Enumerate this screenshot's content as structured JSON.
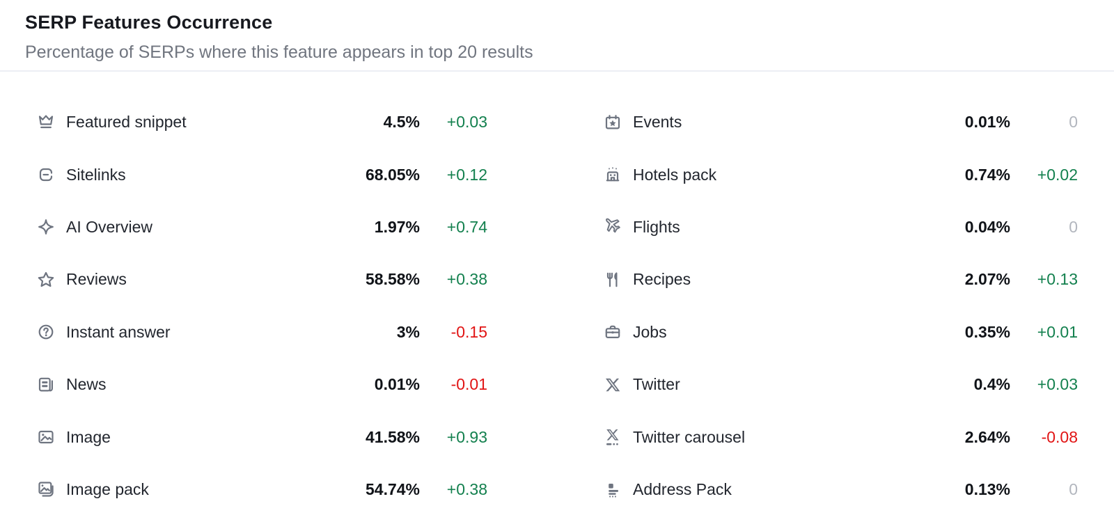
{
  "header": {
    "title": "SERP Features Occurrence",
    "subtitle": "Percentage of SERPs where this feature appears in top 20 results"
  },
  "colors": {
    "positive_change": "#13804e",
    "negative_change": "#e11414",
    "zero_change": "#b2b6be",
    "icon_gray": "#6e7480",
    "title_text": "#17191f",
    "subtitle_text": "#70757f"
  },
  "columns": {
    "left": [
      {
        "label": "Featured snippet",
        "icon": "crown-icon",
        "value": "4.5%",
        "change": "+0.03",
        "trend": "up"
      },
      {
        "label": "Sitelinks",
        "icon": "sitelinks-icon",
        "value": "68.05%",
        "change": "+0.12",
        "trend": "up"
      },
      {
        "label": "AI Overview",
        "icon": "ai-sparkle-icon",
        "value": "1.97%",
        "change": "+0.74",
        "trend": "up"
      },
      {
        "label": "Reviews",
        "icon": "star-icon",
        "value": "58.58%",
        "change": "+0.38",
        "trend": "up"
      },
      {
        "label": "Instant answer",
        "icon": "question-circle-icon",
        "value": "3%",
        "change": "-0.15",
        "trend": "down"
      },
      {
        "label": "News",
        "icon": "news-icon",
        "value": "0.01%",
        "change": "-0.01",
        "trend": "down"
      },
      {
        "label": "Image",
        "icon": "image-icon",
        "value": "41.58%",
        "change": "+0.93",
        "trend": "up"
      },
      {
        "label": "Image pack",
        "icon": "image-pack-icon",
        "value": "54.74%",
        "change": "+0.38",
        "trend": "up"
      }
    ],
    "right": [
      {
        "label": "Events",
        "icon": "calendar-star-icon",
        "value": "0.01%",
        "change": "0",
        "trend": "zero"
      },
      {
        "label": "Hotels pack",
        "icon": "hotel-icon",
        "value": "0.74%",
        "change": "+0.02",
        "trend": "up"
      },
      {
        "label": "Flights",
        "icon": "plane-icon",
        "value": "0.04%",
        "change": "0",
        "trend": "zero"
      },
      {
        "label": "Recipes",
        "icon": "utensils-icon",
        "value": "2.07%",
        "change": "+0.13",
        "trend": "up"
      },
      {
        "label": "Jobs",
        "icon": "briefcase-icon",
        "value": "0.35%",
        "change": "+0.01",
        "trend": "up"
      },
      {
        "label": "Twitter",
        "icon": "x-logo-icon",
        "value": "0.4%",
        "change": "+0.03",
        "trend": "up"
      },
      {
        "label": "Twitter carousel",
        "icon": "x-carousel-icon",
        "value": "2.64%",
        "change": "-0.08",
        "trend": "down"
      },
      {
        "label": "Address Pack",
        "icon": "address-pack-icon",
        "value": "0.13%",
        "change": "0",
        "trend": "zero"
      }
    ]
  }
}
